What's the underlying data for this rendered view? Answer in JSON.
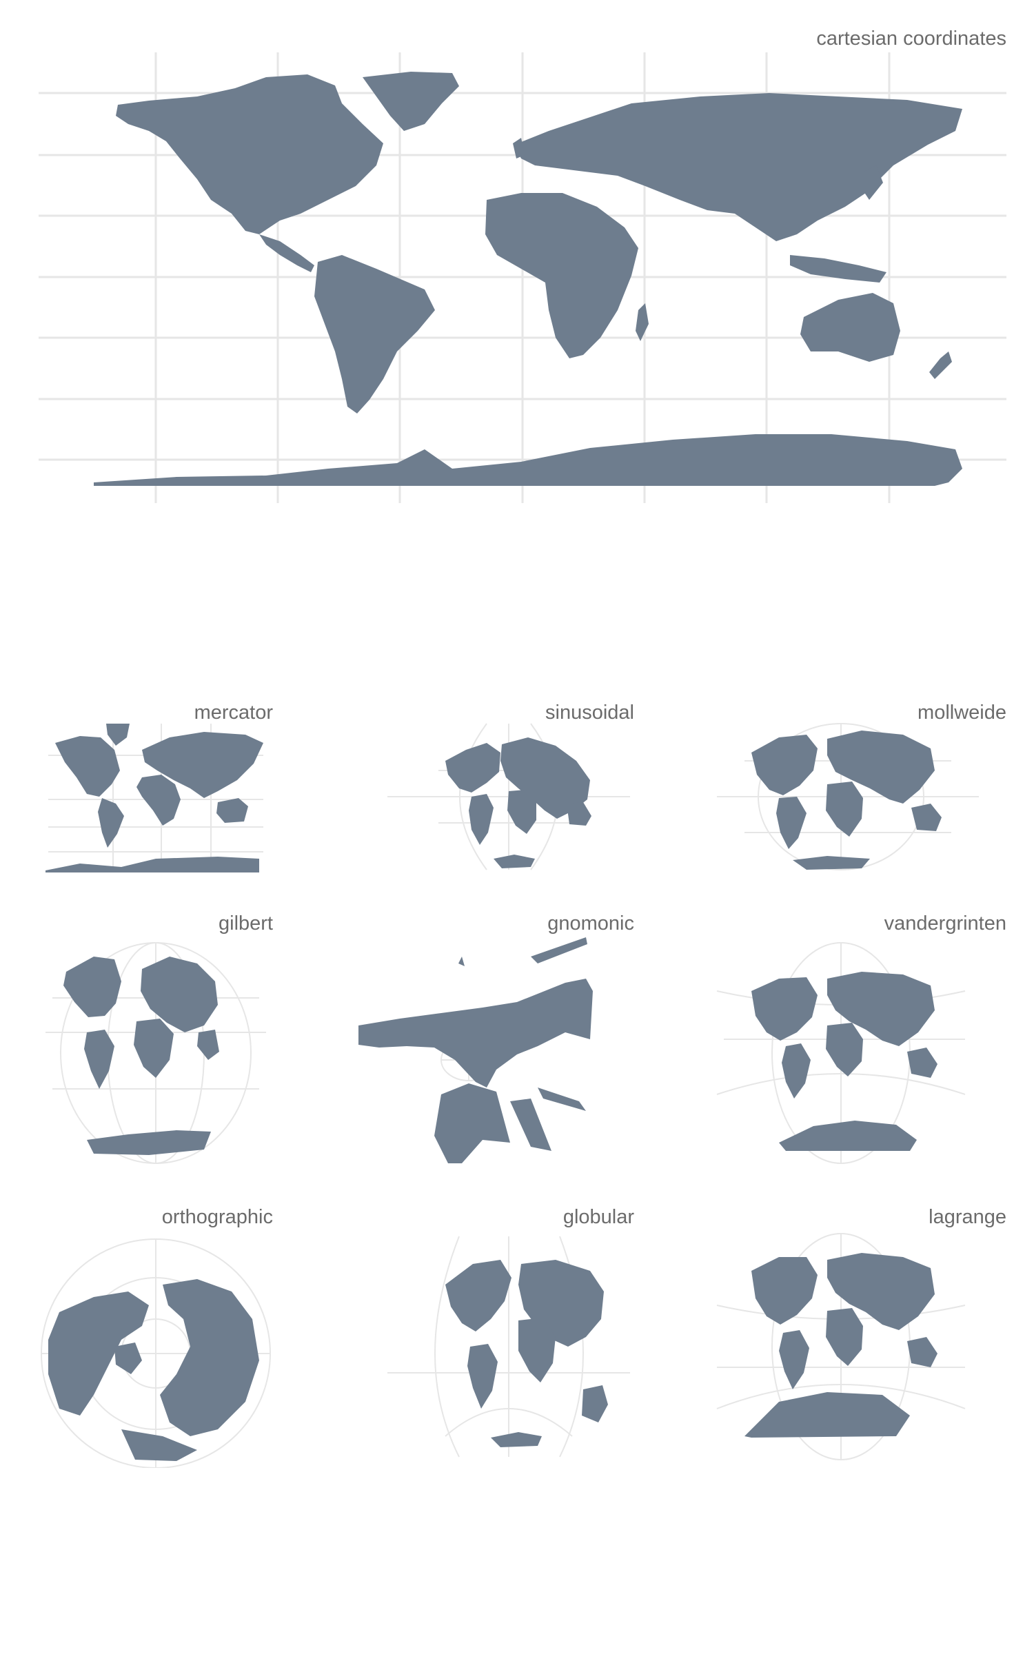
{
  "colors": {
    "land": "#6e7d8e",
    "grid": "#e6e6e6",
    "title": "#6b6b6b",
    "background": "#ffffff"
  },
  "maps": [
    {
      "title": "cartesian coordinates",
      "projection": "cartesian"
    },
    {
      "title": "mercator",
      "projection": "mercator"
    },
    {
      "title": "sinusoidal",
      "projection": "sinusoidal"
    },
    {
      "title": "mollweide",
      "projection": "mollweide"
    },
    {
      "title": "gilbert",
      "projection": "gilbert"
    },
    {
      "title": "gnomonic",
      "projection": "gnomonic"
    },
    {
      "title": "vandergrinten",
      "projection": "vandergrinten"
    },
    {
      "title": "orthographic",
      "projection": "orthographic"
    },
    {
      "title": "globular",
      "projection": "globular"
    },
    {
      "title": "lagrange",
      "projection": "lagrange"
    }
  ]
}
